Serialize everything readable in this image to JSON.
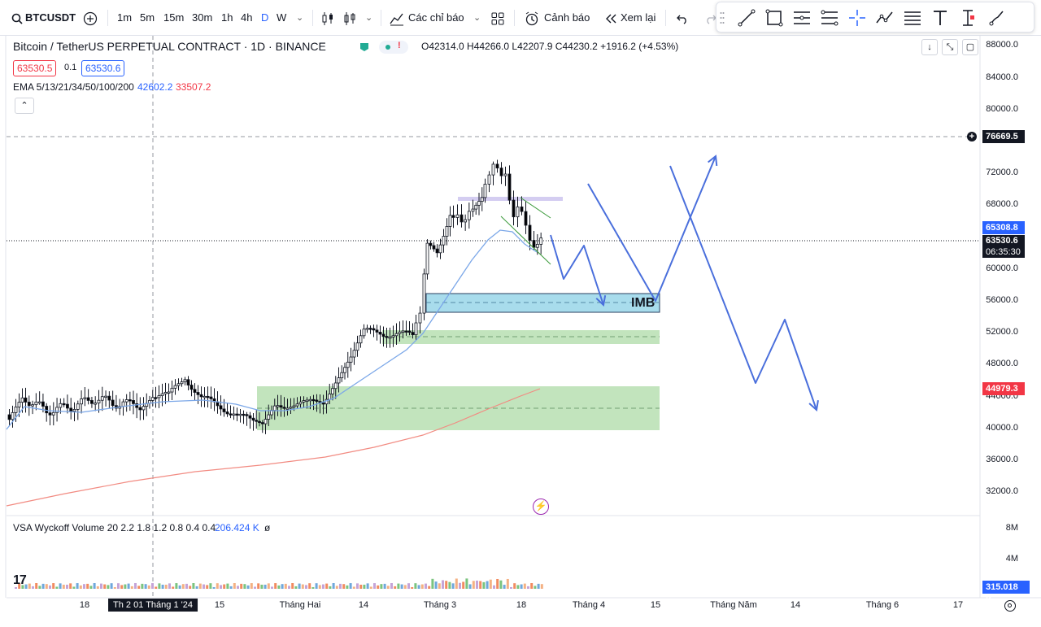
{
  "toolbar": {
    "symbol": "BTCUSDT",
    "timeframes": [
      "1m",
      "5m",
      "15m",
      "30m",
      "1h",
      "4h",
      "D",
      "W"
    ],
    "active_timeframe": "D",
    "indicators_label": "Các chỉ báo",
    "alert_label": "Cảnh báo",
    "replay_label": "Xem lại"
  },
  "drawing_tools": [
    "trend-line-icon",
    "rectangle-icon",
    "fib-icon",
    "pitchfork-icon",
    "crosshair-icon",
    "path-icon",
    "lines-icon",
    "text-icon",
    "anchor-icon",
    "brush-icon"
  ],
  "legend": {
    "title": "Bitcoin / TetherUS PERPETUAL CONTRACT · 1D · BINANCE",
    "ohlc": "O42314.0  H44266.0  L42207.9  C44230.2  +1916.2 (+4.53%)",
    "bid": "63530.5",
    "spread": "0.1",
    "ask": "63530.6",
    "ema_label": "EMA 5/13/21/34/50/100/200",
    "ema_val1": "42602.2",
    "ema_val2": "33507.2",
    "vsa_label": "VSA Wyckoff Volume 20 2.2 1.8 1.2 0.8 0.4 0.4",
    "vsa_value": "206.424 K",
    "vsa_extra": "ø"
  },
  "price_axis": [
    "88000.0",
    "84000.0",
    "80000.0",
    "72000.0",
    "68000.0",
    "60000.0",
    "56000.0",
    "52000.0",
    "48000.0",
    "44000.0",
    "40000.0",
    "36000.0",
    "32000.0"
  ],
  "price_tags": {
    "crosshair": "76669.5",
    "blue_tag": "65308.8",
    "last_price": "63530.6",
    "countdown": "06:35:30",
    "red_tag": "44979.3",
    "volume_tag": "315.018 K"
  },
  "volume_axis": [
    "8M",
    "4M"
  ],
  "x_axis": [
    "18",
    "Th 2 01 Tháng 1 '24",
    "15",
    "Tháng Hai",
    "14",
    "Tháng 3",
    "18",
    "Tháng 4",
    "15",
    "Tháng Năm",
    "14",
    "Tháng 6",
    "17"
  ],
  "annotation": "IMB",
  "colors": {
    "up": "#ffffff",
    "down": "#000000",
    "ema_blue": "#7ba7e8",
    "ema_red": "#f28b82",
    "imb_fill": "#a8dcec",
    "zone_fill": "#b7dfb1",
    "arrow_blue": "#4a6fdc",
    "tag_blue": "#2962ff",
    "tag_red": "#f23645"
  }
}
